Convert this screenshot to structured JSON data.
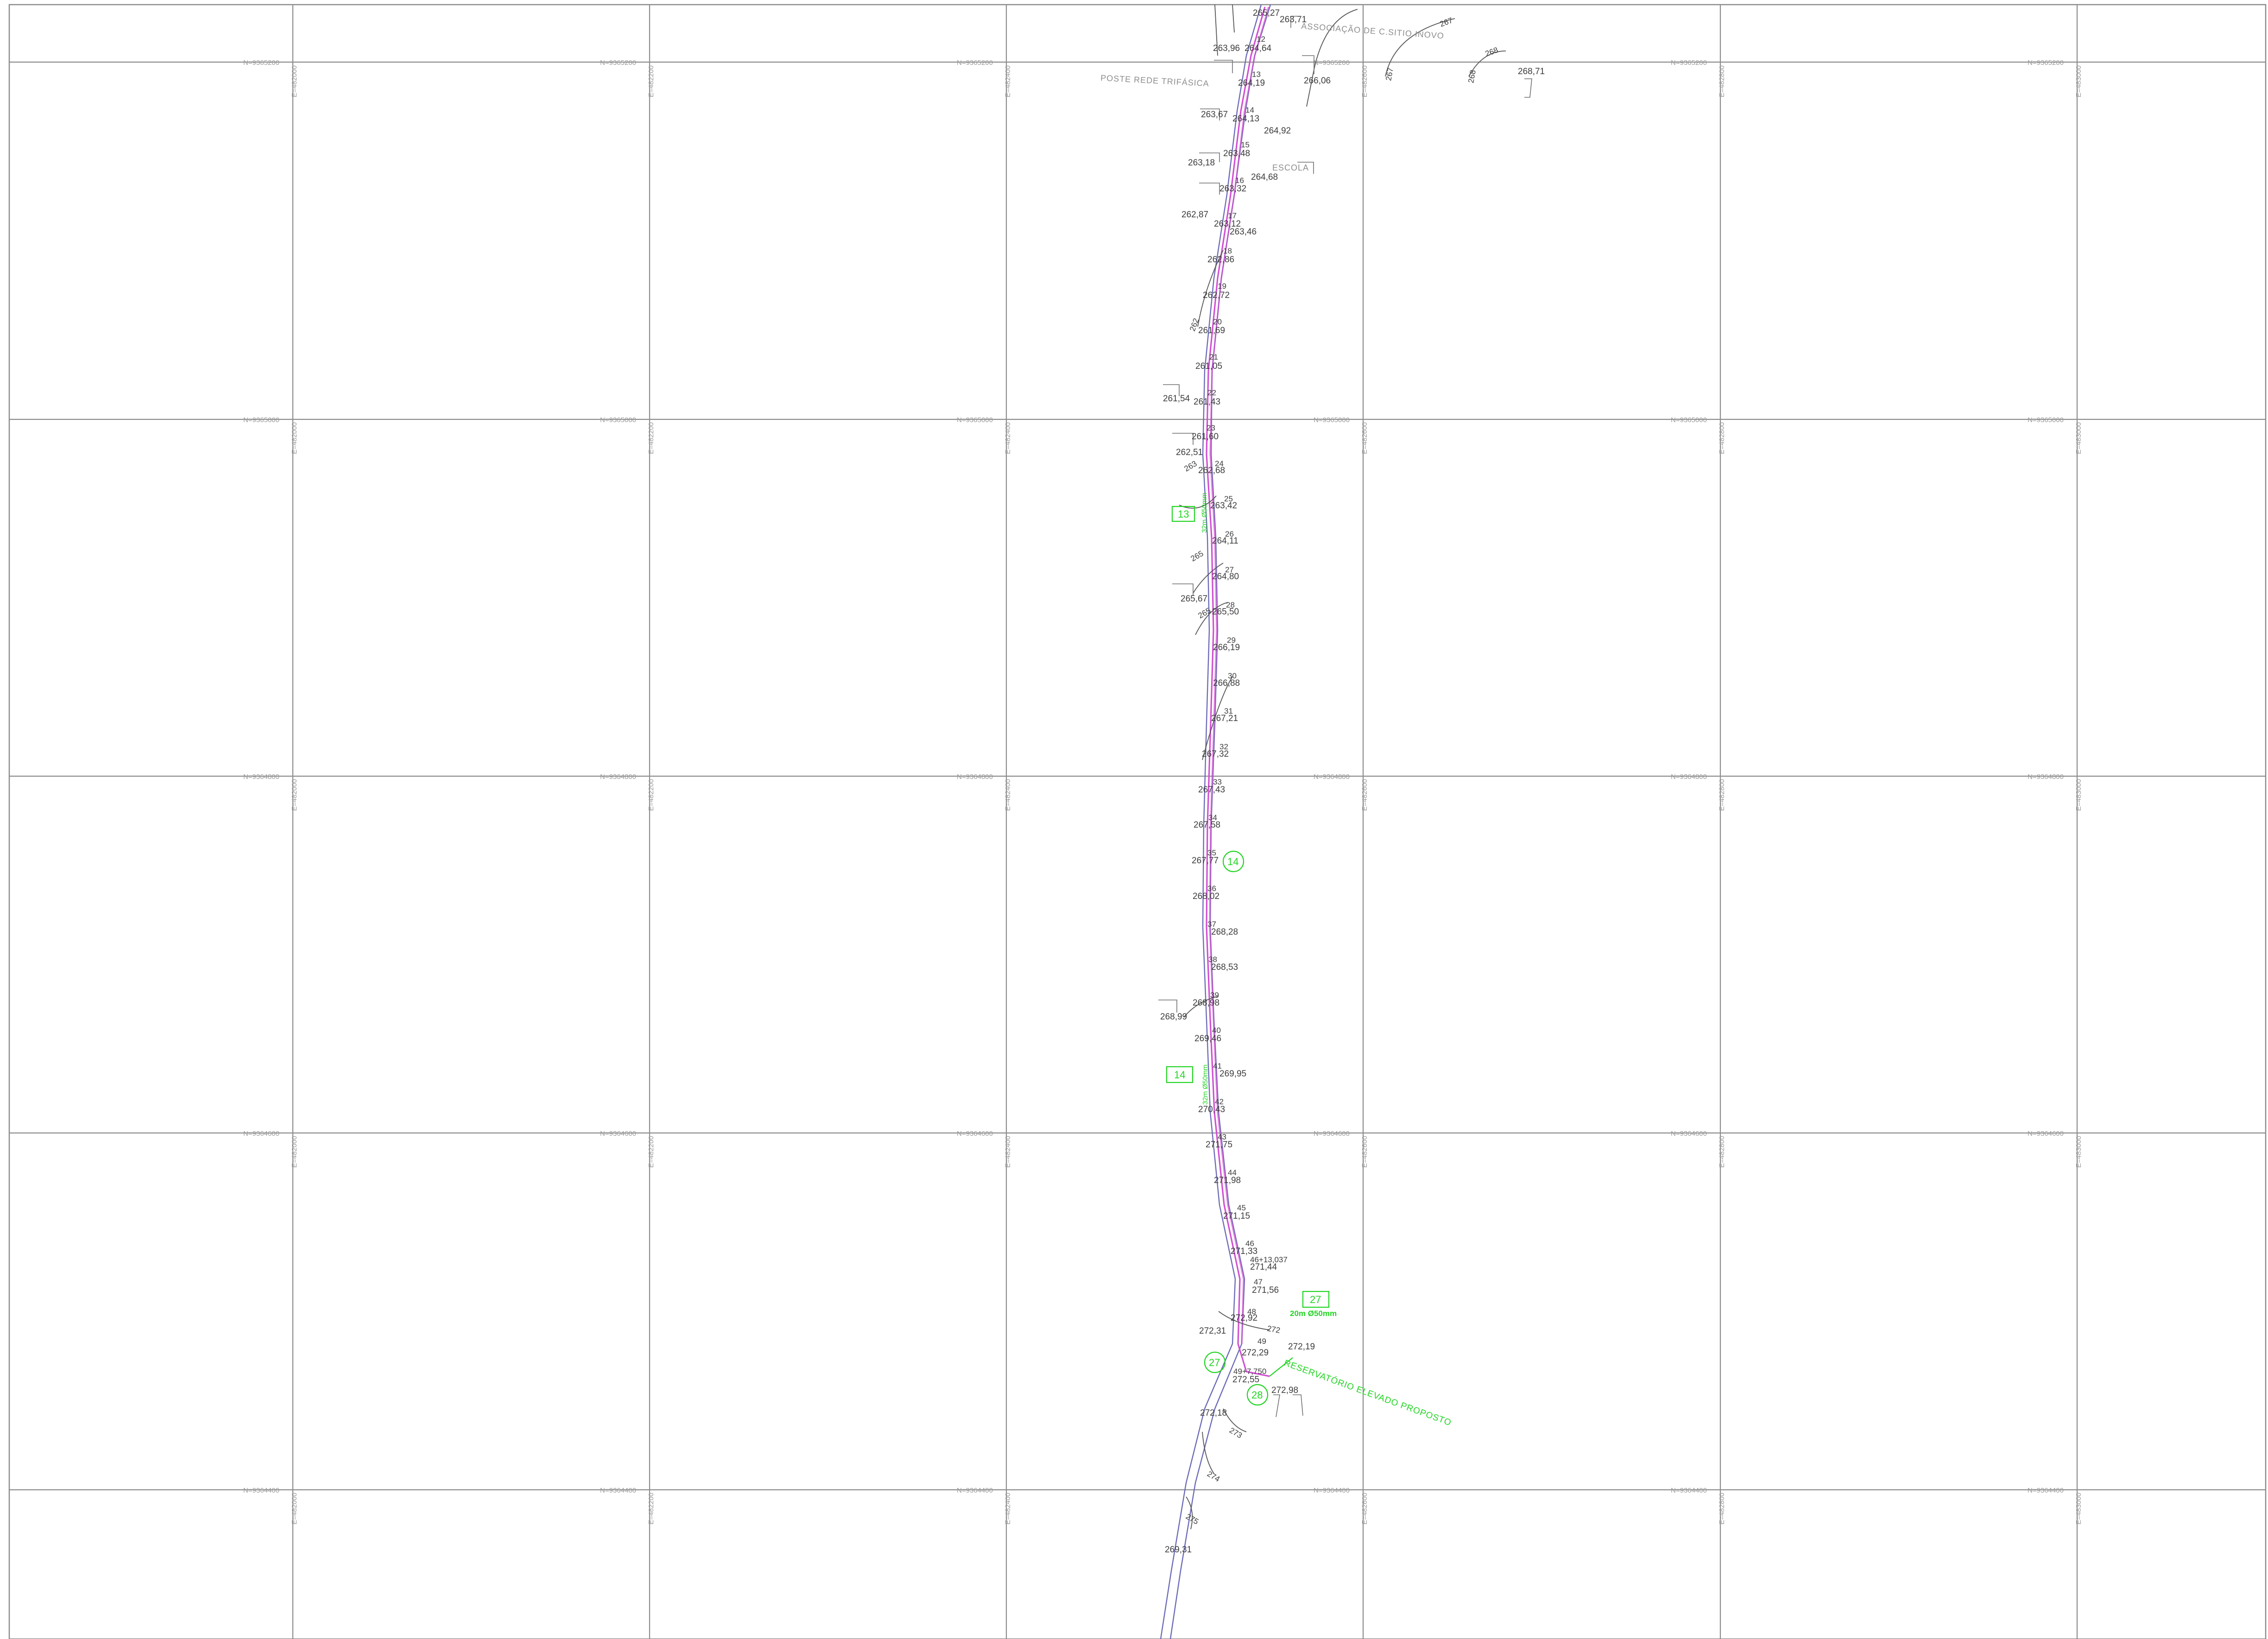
{
  "drawing": {
    "grid_northing_labels": [
      "N=9365200",
      "N=9365000",
      "N=9364800",
      "N=9364600",
      "N=9364400"
    ],
    "grid_easting_labels": [
      "E=482000",
      "E=482200",
      "E=482400",
      "E=482600",
      "E=482800",
      "E=483000"
    ],
    "text_labels": [
      {
        "name": "associacao-label",
        "text": "ASSOCIAÇÃO DE C.SITIO INOVO"
      },
      {
        "name": "poste-label",
        "text": "POSTE REDE TRIFÁSICA"
      },
      {
        "name": "escola-label",
        "text": "ESCOLA"
      },
      {
        "name": "reservatorio-label",
        "text": "RESERVATÓRIO ELEVADO PROPOSTO"
      }
    ],
    "elevations": [
      "265,27",
      "263,71",
      "263,96",
      "264,64",
      "264,19",
      "266,06",
      "268,71",
      "263,67",
      "264,13",
      "264,92",
      "263,48",
      "263,18",
      "264,68",
      "263,32",
      "262,87",
      "263,12",
      "263,46",
      "262,86",
      "262,72",
      "261,69",
      "261,05",
      "261,54",
      "261,43",
      "261,60",
      "262,51",
      "262,68",
      "263,42",
      "264,11",
      "264,80",
      "265,67",
      "265,50",
      "266,19",
      "266,88",
      "267,21",
      "267,32",
      "267,43",
      "267,58",
      "267,77",
      "268,02",
      "268,28",
      "268,53",
      "268,98",
      "268,99",
      "269,46",
      "269,95",
      "270,43",
      "271,75",
      "271,98",
      "271,15",
      "271,33",
      "271,44",
      "271,56",
      "272,31",
      "272,92",
      "272,19",
      "272,29",
      "272,55",
      "272,98",
      "272,18",
      "269,31"
    ],
    "stations": [
      "12",
      "13",
      "14",
      "15",
      "16",
      "17",
      "18",
      "19",
      "20",
      "21",
      "22",
      "23",
      "24",
      "25",
      "26",
      "27",
      "28",
      "29",
      "30",
      "31",
      "32",
      "33",
      "34",
      "35",
      "36",
      "37",
      "38",
      "39",
      "40",
      "41",
      "42",
      "43",
      "44",
      "45",
      "46",
      "46+13,037",
      "47",
      "48",
      "49",
      "49+7,750"
    ],
    "markers": {
      "box_13": "13",
      "box_14": "14",
      "circle_14": "14",
      "box_27": "27",
      "circle_27": "27",
      "circle_28": "28"
    },
    "pipe_notes": {
      "pipe_13": "32m Ø50mm",
      "pipe_14": "32m Ø50mm",
      "pipe_27": "20m Ø50mm"
    },
    "contours": [
      "267",
      "268",
      "269",
      "262",
      "263",
      "265",
      "270",
      "272",
      "273",
      "274",
      "275"
    ],
    "colors": {
      "grid": "#8c8c8c",
      "pipe": "#d24fd2",
      "road": "#6b6bb8",
      "annotation_green": "#22d422",
      "text": "#3c3c3c"
    }
  }
}
